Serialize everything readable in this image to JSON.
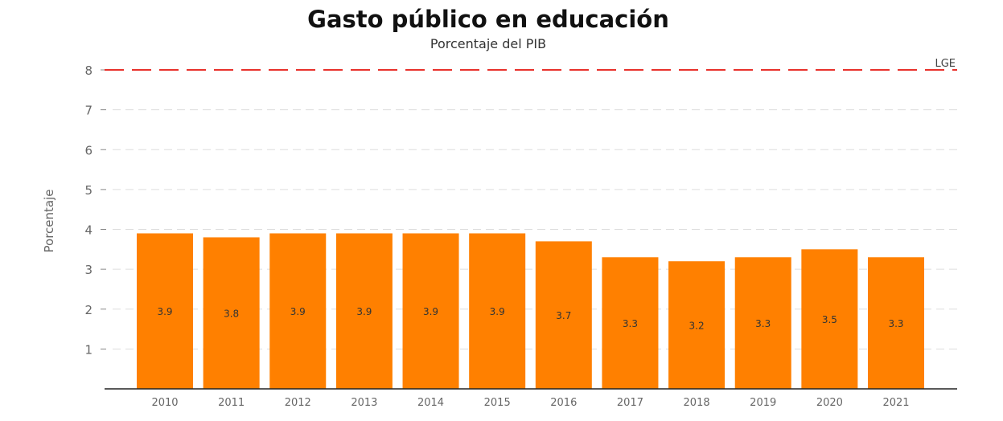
{
  "chart_data": {
    "type": "bar",
    "title": "Gasto público en educación",
    "subtitle": "Porcentaje del PIB",
    "xlabel": "",
    "ylabel": "Porcentaje",
    "categories": [
      "2010",
      "2011",
      "2012",
      "2013",
      "2014",
      "2015",
      "2016",
      "2017",
      "2018",
      "2019",
      "2020",
      "2021"
    ],
    "values": [
      3.9,
      3.8,
      3.9,
      3.9,
      3.9,
      3.9,
      3.7,
      3.3,
      3.2,
      3.3,
      3.5,
      3.3
    ],
    "data_labels": [
      "3.9",
      "3.8",
      "3.9",
      "3.9",
      "3.9",
      "3.9",
      "3.7",
      "3.3",
      "3.2",
      "3.3",
      "3.5",
      "3.3"
    ],
    "ylim": [
      0,
      8
    ],
    "yticks": [
      1,
      2,
      3,
      4,
      5,
      6,
      7,
      8
    ],
    "grid": true,
    "reference_line": {
      "value": 8,
      "label": "LGE",
      "color": "#e8312b",
      "style": "dashed"
    },
    "colors": {
      "bar": "#ff8000",
      "text": "#333333",
      "axis": "#222222",
      "grid": "#dddddd"
    }
  }
}
